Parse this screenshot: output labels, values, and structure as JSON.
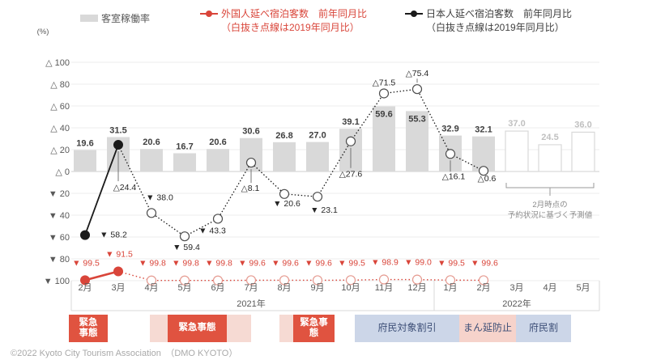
{
  "legend": {
    "occupancy": {
      "label": "客室稼働率"
    },
    "foreign": {
      "label": "外国人延べ宿泊客数　前年同月比",
      "sub": "（白抜き点線は2019年同月比）"
    },
    "japanese": {
      "label": "日本人延べ宿泊客数　前年同月比",
      "sub": "（白抜き点線は2019年同月比）"
    }
  },
  "axis_unit": "(%)",
  "chart_data": {
    "type": "bar+line combo",
    "categories": [
      "2月",
      "3月",
      "4月",
      "5月",
      "6月",
      "7月",
      "8月",
      "9月",
      "10月",
      "11月",
      "12月",
      "1月",
      "2月",
      "3月",
      "4月",
      "5月"
    ],
    "year_groups": [
      {
        "label": "2021年",
        "from": 0,
        "to": 10
      },
      {
        "label": "2022年",
        "from": 11,
        "to": 15
      }
    ],
    "ylim": [
      -100,
      100
    ],
    "ytick_step": 20,
    "ytick_labels": [
      "△ 100",
      "△ 80",
      "△ 60",
      "△ 40",
      "△ 20",
      "△ 0",
      "▼ 20",
      "▼ 40",
      "▼ 60",
      "▼ 80",
      "▼ 100"
    ],
    "grid": true,
    "series": [
      {
        "name": "客室稼働率",
        "type": "bar",
        "values": [
          19.6,
          31.5,
          20.6,
          16.7,
          20.6,
          30.6,
          26.8,
          27.0,
          39.1,
          59.6,
          55.3,
          32.9,
          32.1,
          null,
          null,
          null
        ],
        "labels": [
          "19.6",
          "31.5",
          "20.6",
          "16.7",
          "20.6",
          "30.6",
          "26.8",
          "27.0",
          "39.1",
          "59.6",
          "55.3",
          "32.9",
          "32.1"
        ]
      },
      {
        "name": "客室稼働率（予測）",
        "type": "bar-outline",
        "values": [
          null,
          null,
          null,
          null,
          null,
          null,
          null,
          null,
          null,
          null,
          null,
          null,
          null,
          37.0,
          24.5,
          36.0
        ],
        "labels": [
          "37.0",
          "24.5",
          "36.0"
        ]
      },
      {
        "name": "日本人延べ宿泊客数 前年同月比",
        "type": "line",
        "solid_until": 1,
        "values": [
          -58.2,
          24.4,
          -38.0,
          -59.4,
          -43.3,
          8.1,
          -20.6,
          -23.1,
          27.6,
          71.5,
          75.4,
          16.1,
          0.6
        ],
        "labels": [
          "▼ 58.2",
          "△24.4",
          "▼ 38.0",
          "▼ 59.4",
          "▼ 43.3",
          "△8.1",
          "▼ 20.6",
          "▼ 23.1",
          "△27.6",
          "△71.5",
          "△75.4",
          "△16.1",
          "△0.6"
        ]
      },
      {
        "name": "外国人延べ宿泊客数 前年同月比",
        "type": "line",
        "solid_until": 1,
        "values": [
          -99.5,
          -91.5,
          -99.8,
          -99.8,
          -99.8,
          -99.6,
          -99.6,
          -99.6,
          -99.5,
          -98.9,
          -99.0,
          -99.5,
          -99.6
        ],
        "labels": [
          "▼ 99.5",
          "▼ 91.5",
          "▼ 99.8",
          "▼ 99.8",
          "▼ 99.8",
          "▼ 99.6",
          "▼ 99.6",
          "▼ 99.6",
          "▼ 99.5",
          "▼ 98.9",
          "▼ 99.0",
          "▼ 99.5",
          "▼ 99.6"
        ]
      }
    ],
    "forecast_note": [
      "2月時点の",
      "予約状況に基づく予測値"
    ]
  },
  "annotations": [
    {
      "label": "緊急事態",
      "style": "red"
    },
    {
      "label": "緊急事態",
      "style": "pink-red"
    },
    {
      "label": "緊急事態",
      "style": "pink-red"
    },
    {
      "label": "府民対象割引",
      "style": "blue"
    },
    {
      "label": "まん延防止",
      "style": "pink"
    },
    {
      "label": "府民割",
      "style": "blue"
    }
  ],
  "footer": {
    "copyright": "©2022 Kyoto City Tourism Association　（DMO KYOTO）"
  },
  "colors": {
    "bar": "#d9d9d9",
    "bar_label": "#3f3f3f",
    "forecast_label": "#c0c0c0",
    "japanese_line": "#1a1a1a",
    "foreign_line": "#d9453a",
    "emergency_red": "#e05340",
    "pink_band": "#f6dad3",
    "blue_band": "#ccd6e8",
    "band_text": "#3d4f77",
    "axis_text": "#595959",
    "grid": "#ececec"
  }
}
